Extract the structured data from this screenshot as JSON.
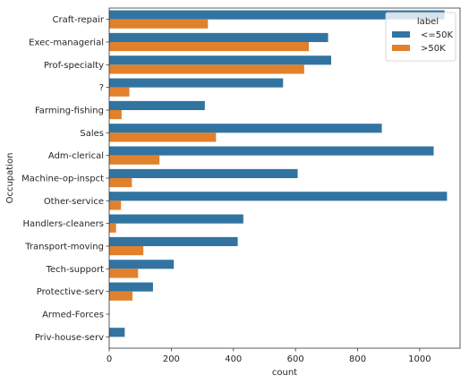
{
  "chart_data": {
    "type": "bar",
    "orientation": "horizontal",
    "categories": [
      "Craft-repair",
      "Exec-managerial",
      "Prof-specialty",
      "?",
      "Farming-fishing",
      "Sales",
      "Adm-clerical",
      "Machine-op-inspct",
      "Other-service",
      "Handlers-cleaners",
      "Transport-moving",
      "Tech-support",
      "Protective-serv",
      "Armed-Forces",
      "Priv-house-serv"
    ],
    "series": [
      {
        "name": "<=50K",
        "color": "#3274a1",
        "values": [
          1080,
          705,
          715,
          560,
          308,
          878,
          1045,
          607,
          1088,
          432,
          414,
          208,
          141,
          1,
          50
        ]
      },
      {
        "name": ">50K",
        "color": "#e1812c",
        "values": [
          318,
          643,
          628,
          65,
          40,
          344,
          162,
          73,
          38,
          22,
          110,
          93,
          75,
          0,
          0
        ]
      }
    ],
    "xlabel": "count",
    "ylabel": "Occupation",
    "xlim": [
      0,
      1130
    ],
    "xticks": [
      0,
      200,
      400,
      600,
      800,
      1000
    ],
    "legend": {
      "title": "label",
      "placement": "top-right"
    },
    "grid": false
  }
}
